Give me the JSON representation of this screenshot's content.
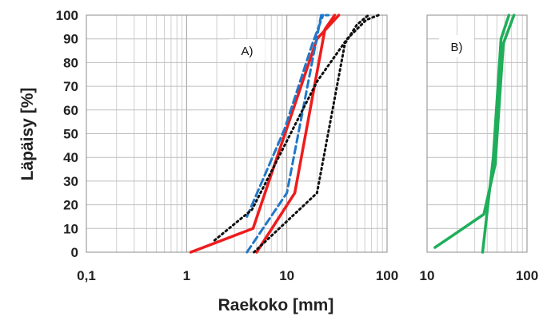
{
  "chart_data": [
    {
      "type": "line",
      "label": "A)",
      "xscale": "log",
      "xlim": [
        0.1,
        100
      ],
      "ylim": [
        0,
        100
      ],
      "xticks": [
        "0,1",
        "1",
        "10",
        "100"
      ],
      "yticks": [
        "0",
        "10",
        "20",
        "30",
        "40",
        "50",
        "60",
        "70",
        "80",
        "90",
        "100"
      ],
      "xlabel": "Raekoko [mm]",
      "ylabel": "Läpäisy [%]",
      "grid": true,
      "series": [
        {
          "style": "solid",
          "color": "#ee1c1c",
          "x": [
            1.1,
            4.6,
            20,
            33
          ],
          "y": [
            0,
            10,
            90,
            100
          ]
        },
        {
          "style": "solid",
          "color": "#ee1c1c",
          "x": [
            5.0,
            12,
            24,
            30
          ],
          "y": [
            0,
            25,
            94,
            100
          ]
        },
        {
          "style": "dashed",
          "color": "#1f78c8",
          "x": [
            4.0,
            10,
            22,
            26
          ],
          "y": [
            0,
            25,
            100,
            100
          ]
        },
        {
          "style": "dashed",
          "color": "#1f78c8",
          "x": [
            4.0,
            9.5,
            18,
            23
          ],
          "y": [
            15,
            52,
            88,
            100
          ]
        },
        {
          "style": "dotted",
          "color": "#111111",
          "x": [
            1.9,
            4.5,
            20,
            40,
            62,
            82
          ],
          "y": [
            5,
            18,
            72,
            90,
            98,
            100
          ]
        },
        {
          "style": "dotted",
          "color": "#111111",
          "x": [
            4.7,
            20,
            38,
            50,
            65
          ],
          "y": [
            0,
            25,
            88,
            96,
            100
          ]
        }
      ]
    },
    {
      "type": "line",
      "label": "B)",
      "xscale": "log",
      "xlim": [
        10,
        100
      ],
      "ylim": [
        0,
        100
      ],
      "xticks": [
        "10",
        "100"
      ],
      "grid": true,
      "series": [
        {
          "style": "solid",
          "color": "#1fae5a",
          "x": [
            12,
            18,
            37,
            48,
            58,
            74
          ],
          "y": [
            2,
            7,
            16,
            37,
            88,
            100
          ]
        },
        {
          "style": "solid",
          "color": "#1fae5a",
          "x": [
            36,
            46,
            55,
            66
          ],
          "y": [
            0,
            40,
            90,
            100
          ]
        }
      ]
    }
  ]
}
